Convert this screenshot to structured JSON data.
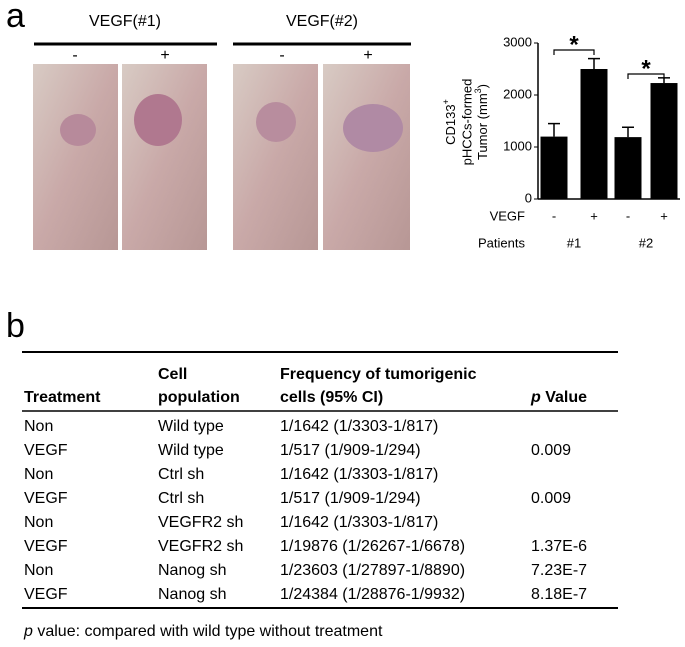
{
  "panel_a": {
    "label": "a",
    "groups": [
      {
        "title": "VEGF(#1)",
        "conditions": [
          "-",
          "+"
        ]
      },
      {
        "title": "VEGF(#2)",
        "conditions": [
          "-",
          "+"
        ]
      }
    ]
  },
  "chart_data": {
    "type": "bar",
    "ylabel": [
      "CD133",
      "+",
      "pHCCs-formed",
      "Tumor (mm",
      "3",
      ")"
    ],
    "categories": [
      "-",
      "+",
      "-",
      "+"
    ],
    "category_label": "VEGF",
    "groups": [
      "#1",
      "#2"
    ],
    "group_label": "Patients",
    "values": [
      1200,
      2500,
      1190,
      2230
    ],
    "errors": [
      250,
      200,
      190,
      100
    ],
    "color": "#000000",
    "annotations": [
      "*",
      "*"
    ],
    "ylim": [
      0,
      3000
    ],
    "yticks": [
      0,
      1000,
      2000,
      3000
    ]
  },
  "panel_b": {
    "label": "b",
    "header": [
      [
        "Treatment"
      ],
      [
        "Cell",
        "population"
      ],
      [
        "Frequency of tumorigenic",
        "cells (95% CI)"
      ],
      [
        "p",
        " Value"
      ]
    ],
    "rows": [
      [
        "Non",
        "Wild type",
        "1/1642 (1/3303-1/817)",
        null
      ],
      [
        "VEGF",
        "Wild type",
        "1/517 (1/909-1/294)",
        "0.009"
      ],
      [
        "Non",
        "Ctrl sh",
        "1/1642 (1/3303-1/817)",
        null
      ],
      [
        "VEGF",
        "Ctrl sh",
        "1/517 (1/909-1/294)",
        "0.009"
      ],
      [
        "Non",
        "VEGFR2 sh",
        "1/1642 (1/3303-1/817)",
        null
      ],
      [
        "VEGF",
        "VEGFR2 sh",
        "1/19876 (1/26267-1/6678)",
        "1.37E-6"
      ],
      [
        "Non",
        "Nanog sh",
        "1/23603 (1/27897-1/8890)",
        "7.23E-7"
      ],
      [
        "VEGF",
        "Nanog sh",
        "1/24384 (1/28876-1/9932)",
        "8.18E-7"
      ]
    ],
    "footnote": [
      "p",
      " value: compared with wild type without treatment"
    ]
  }
}
